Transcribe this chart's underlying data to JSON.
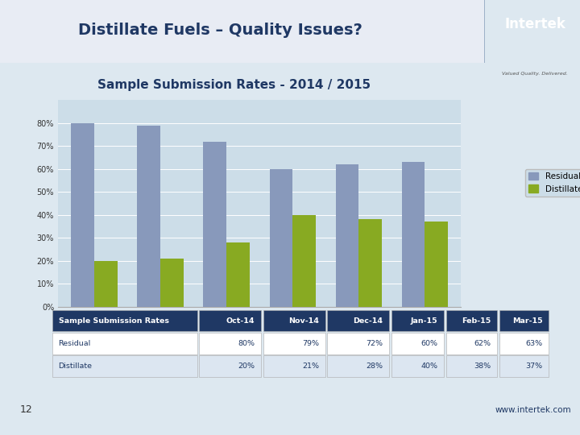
{
  "title_main": "Distillate Fuels – Quality Issues?",
  "title_chart": "Sample Submission Rates - 2014 / 2015",
  "categories": [
    "Oct-14",
    "Nov-14",
    "Dec-14",
    "Jan-15",
    "Feb-15",
    "Mar-15"
  ],
  "residual": [
    80,
    79,
    72,
    60,
    62,
    63
  ],
  "distillate": [
    20,
    21,
    28,
    40,
    38,
    37
  ],
  "residual_color": "#8899BB",
  "distillate_color": "#88AA22",
  "bar_width": 0.35,
  "ylim": [
    0,
    90
  ],
  "yticks": [
    0,
    10,
    20,
    30,
    40,
    50,
    60,
    70,
    80
  ],
  "bg_slide": "#DDE8F0",
  "bg_chart": "#CCDDE8",
  "header_bg_left": "#DADEEA",
  "header_bg_right": "#C8D4E0",
  "intertek_bg": "#1F3D7A",
  "table_header_bg": "#1F3864",
  "table_header_fg": "#FFFFFF",
  "table_row1_bg": "#FFFFFF",
  "table_row2_bg": "#DCE6F1",
  "footer_bg": "#C8D4E0",
  "footer_right_bg": "#B8C8D8",
  "page_num": "12",
  "website": "www.intertek.com",
  "title_color": "#1F3864",
  "table_data": [
    [
      "Sample Submission Rates",
      "Oct-14",
      "Nov-14",
      "Dec-14",
      "Jan-15",
      "Feb-15",
      "Mar-15"
    ],
    [
      "Residual",
      "80%",
      "79%",
      "72%",
      "60%",
      "62%",
      "63%"
    ],
    [
      "Distillate",
      "20%",
      "21%",
      "28%",
      "40%",
      "38%",
      "37%"
    ]
  ]
}
